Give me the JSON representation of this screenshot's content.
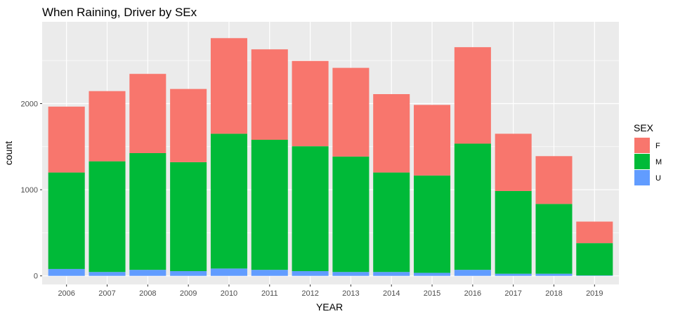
{
  "chart_data": {
    "type": "bar",
    "stacked": true,
    "title": "When Raining, Driver by SEx",
    "xlabel": "YEAR",
    "ylabel": "count",
    "categories": [
      "2006",
      "2007",
      "2008",
      "2009",
      "2010",
      "2011",
      "2012",
      "2013",
      "2014",
      "2015",
      "2016",
      "2017",
      "2018",
      "2019"
    ],
    "series": [
      {
        "name": "U",
        "color": "#619CFF",
        "values": [
          80,
          45,
          70,
          55,
          85,
          70,
          55,
          45,
          45,
          35,
          70,
          25,
          25,
          5
        ]
      },
      {
        "name": "M",
        "color": "#00BA38",
        "values": [
          1120,
          1285,
          1355,
          1265,
          1565,
          1510,
          1450,
          1340,
          1155,
          1130,
          1465,
          960,
          810,
          375
        ]
      },
      {
        "name": "F",
        "color": "#F8766D",
        "values": [
          765,
          815,
          920,
          850,
          1110,
          1050,
          990,
          1030,
          910,
          820,
          1120,
          665,
          555,
          250
        ]
      }
    ],
    "ylim": [
      -100,
      2950
    ],
    "yticks": [
      0,
      1000,
      2000
    ],
    "ytick_labels": [
      "0",
      "1000",
      "2000"
    ],
    "grid": true,
    "legend": {
      "title": "SEX",
      "position": "right",
      "entries": [
        {
          "label": "F",
          "color": "#F8766D"
        },
        {
          "label": "M",
          "color": "#00BA38"
        },
        {
          "label": "U",
          "color": "#619CFF"
        }
      ]
    },
    "panel_background": "#EBEBEB",
    "grid_color": "#FFFFFF"
  }
}
